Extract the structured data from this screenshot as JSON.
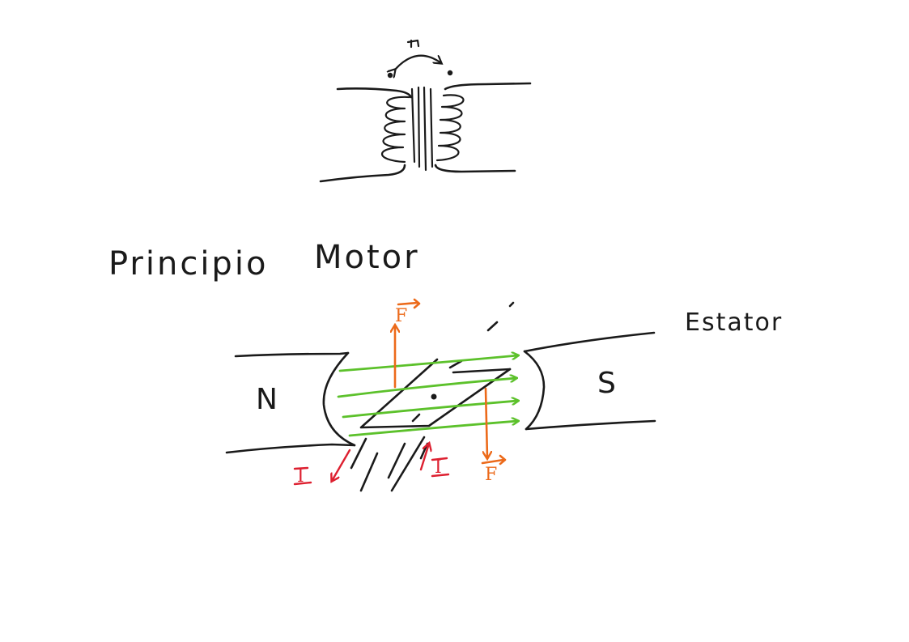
{
  "title_left": "Principio",
  "title_right": "Motor",
  "labels": {
    "north_pole": "N",
    "south_pole": "S",
    "stator": "Estator",
    "force_top": "F",
    "force_bottom": "F",
    "current_left": "I",
    "current_right": "I"
  },
  "colors": {
    "ink": "#1a1a1a",
    "field_lines": "#5cc12b",
    "force": "#ec6a1a",
    "current": "#dd2030"
  }
}
